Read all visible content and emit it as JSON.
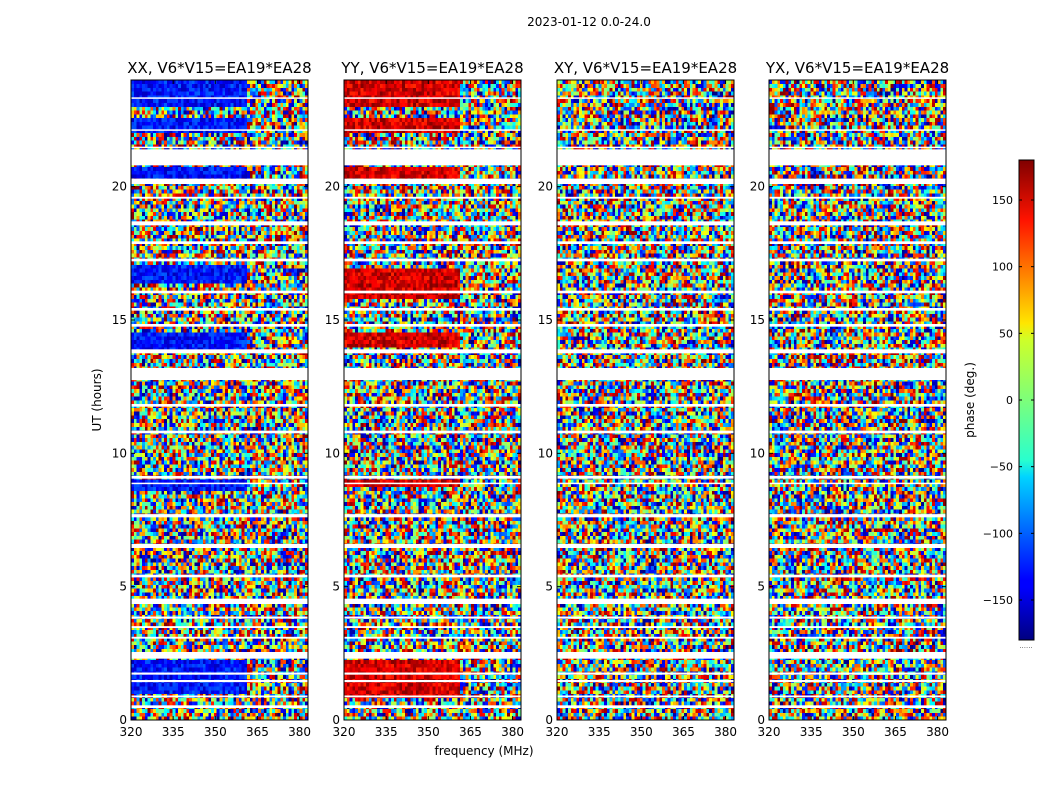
{
  "suptitle": "2023-01-12 0.0-24.0",
  "xlabel": "frequency (MHz)",
  "ylabel": "UT (hours)",
  "colorbar": {
    "label": "phase (deg.)",
    "ticks": [
      150,
      100,
      50,
      0,
      -50,
      -100,
      -150
    ],
    "tick_labels": [
      "150",
      "100",
      "50",
      "0",
      "−50",
      "−100",
      "−150"
    ],
    "range": [
      -180,
      180
    ],
    "footer": "......"
  },
  "chart_data": [
    {
      "type": "heatmap",
      "title": "XX, V6*V15=EA19*EA28",
      "xlabel": "frequency (MHz)",
      "ylabel": "UT (hours)",
      "xlim": [
        320,
        383
      ],
      "ylim": [
        0,
        24
      ],
      "xticks": [
        320,
        335,
        350,
        365,
        380
      ],
      "xtick_labels": [
        "320",
        "335",
        "350",
        "365",
        "380"
      ],
      "yticks": [
        0,
        5,
        10,
        15,
        20
      ],
      "ytick_labels": [
        "0",
        "5",
        "10",
        "15",
        "20"
      ],
      "value": "phase (deg.)",
      "coherent_bands_ut": [
        [
          1.0,
          2.2
        ],
        [
          8.6,
          9.1
        ],
        [
          13.8,
          14.6
        ],
        [
          16.4,
          17.1
        ],
        [
          20.3,
          20.8
        ],
        [
          22.0,
          22.6
        ],
        [
          23.0,
          24.0
        ]
      ],
      "coherent_phase_deg": -130
    },
    {
      "type": "heatmap",
      "title": "YY, V6*V15=EA19*EA28",
      "xlabel": "frequency (MHz)",
      "ylabel": "",
      "xlim": [
        320,
        383
      ],
      "ylim": [
        0,
        24
      ],
      "xticks": [
        320,
        335,
        350,
        365,
        380
      ],
      "xtick_labels": [
        "320",
        "335",
        "350",
        "365",
        "380"
      ],
      "yticks": [
        0,
        5,
        10,
        15,
        20
      ],
      "ytick_labels": [
        "0",
        "5",
        "10",
        "15",
        "20"
      ],
      "value": "phase (deg.)",
      "coherent_bands_ut": [
        [
          0.9,
          2.2
        ],
        [
          8.7,
          9.1
        ],
        [
          14.0,
          14.6
        ],
        [
          15.8,
          17.0
        ],
        [
          20.3,
          20.8
        ],
        [
          22.0,
          22.6
        ],
        [
          23.0,
          24.0
        ]
      ],
      "coherent_phase_deg": 150
    },
    {
      "type": "heatmap",
      "title": "XY, V6*V15=EA19*EA28",
      "xlabel": "frequency (MHz)",
      "ylabel": "",
      "xlim": [
        320,
        383
      ],
      "ylim": [
        0,
        24
      ],
      "xticks": [
        320,
        335,
        350,
        365,
        380
      ],
      "xtick_labels": [
        "320",
        "335",
        "350",
        "365",
        "380"
      ],
      "yticks": [
        0,
        5,
        10,
        15,
        20
      ],
      "ytick_labels": [
        "0",
        "5",
        "10",
        "15",
        "20"
      ],
      "value": "phase (deg.)",
      "coherent_bands_ut": [],
      "coherent_phase_deg": 0
    },
    {
      "type": "heatmap",
      "title": "YX, V6*V15=EA19*EA28",
      "xlabel": "frequency (MHz)",
      "ylabel": "",
      "xlim": [
        320,
        383
      ],
      "ylim": [
        0,
        24
      ],
      "xticks": [
        320,
        335,
        350,
        365,
        380
      ],
      "xtick_labels": [
        "320",
        "335",
        "350",
        "365",
        "380"
      ],
      "yticks": [
        0,
        5,
        10,
        15,
        20
      ],
      "ytick_labels": [
        "0",
        "5",
        "10",
        "15",
        "20"
      ],
      "value": "phase (deg.)",
      "coherent_bands_ut": [],
      "coherent_phase_deg": 0
    }
  ],
  "flagged_ut_ranges": [
    [
      0.45,
      0.55
    ],
    [
      0.85,
      0.92
    ],
    [
      1.42,
      1.5
    ],
    [
      1.7,
      1.78
    ],
    [
      2.3,
      2.55
    ],
    [
      3.05,
      3.12
    ],
    [
      3.45,
      3.52
    ],
    [
      3.8,
      3.88
    ],
    [
      4.35,
      4.55
    ],
    [
      5.35,
      5.45
    ],
    [
      6.45,
      6.6
    ],
    [
      7.6,
      7.72
    ],
    [
      8.85,
      8.9
    ],
    [
      9.05,
      9.15
    ],
    [
      10.75,
      10.85
    ],
    [
      11.75,
      11.85
    ],
    [
      12.75,
      13.2
    ],
    [
      13.75,
      13.9
    ],
    [
      14.75,
      14.85
    ],
    [
      15.35,
      15.45
    ],
    [
      16.0,
      16.1
    ],
    [
      17.2,
      17.3
    ],
    [
      17.85,
      17.95
    ],
    [
      18.55,
      18.7
    ],
    [
      19.55,
      19.62
    ],
    [
      20.1,
      20.3
    ],
    [
      20.8,
      21.4
    ],
    [
      21.45,
      21.5
    ],
    [
      22.1,
      22.15
    ],
    [
      23.3,
      23.35
    ]
  ]
}
